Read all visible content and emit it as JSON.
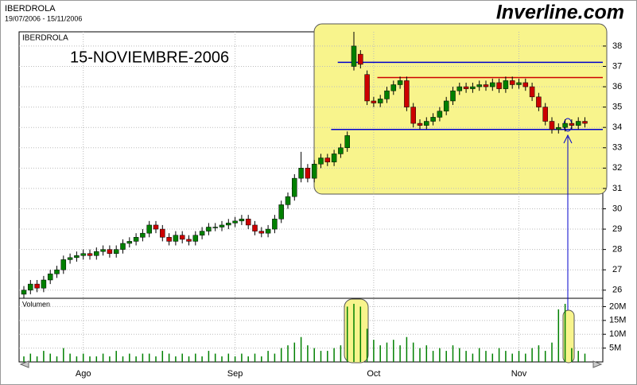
{
  "chart_data": {
    "type": "candlestick",
    "title": "IBERDROLA",
    "subtitle": "19/07/2006 - 15/11/2006",
    "brand": "Inverline.com",
    "label": "IBERDROLA",
    "annotation": "15-NOVIEMBRE-2006",
    "categories": [
      null,
      null,
      null,
      null,
      null,
      null,
      null,
      null,
      null,
      "Ago",
      null,
      null,
      null,
      null,
      null,
      null,
      null,
      null,
      null,
      null,
      null,
      null,
      null,
      null,
      null,
      null,
      null,
      null,
      null,
      null,
      null,
      null,
      "Sep",
      null,
      null,
      null,
      null,
      null,
      null,
      null,
      null,
      null,
      null,
      null,
      null,
      null,
      null,
      null,
      null,
      null,
      null,
      null,
      null,
      "Oct",
      null,
      null,
      null,
      null,
      null,
      null,
      null,
      null,
      null,
      null,
      null,
      null,
      null,
      null,
      null,
      null,
      null,
      null,
      null,
      null,
      null,
      "Nov",
      null,
      null,
      null,
      null,
      null,
      null,
      null,
      null,
      null,
      null
    ],
    "open": [
      25.8,
      26.0,
      26.3,
      26.1,
      26.5,
      26.8,
      27.0,
      27.5,
      27.6,
      27.7,
      27.8,
      27.7,
      27.9,
      28.0,
      27.8,
      28.0,
      28.3,
      28.4,
      28.6,
      28.8,
      29.2,
      29.0,
      28.6,
      28.4,
      28.7,
      28.5,
      28.4,
      28.7,
      28.9,
      29.1,
      29.1,
      29.2,
      29.3,
      29.4,
      29.5,
      29.2,
      28.9,
      28.8,
      29.0,
      29.5,
      30.2,
      30.6,
      31.5,
      32.0,
      31.5,
      32.2,
      32.5,
      32.3,
      32.7,
      33.0,
      37.0,
      37.6,
      36.6,
      35.3,
      35.2,
      35.4,
      35.8,
      36.1,
      36.3,
      35.0,
      34.2,
      34.1,
      34.3,
      34.5,
      34.8,
      35.3,
      35.8,
      36.0,
      35.9,
      36.0,
      36.1,
      36.0,
      36.2,
      35.9,
      36.3,
      36.1,
      36.2,
      36.0,
      35.5,
      35.0,
      34.3,
      33.9,
      34.0,
      34.2,
      34.1,
      34.3
    ],
    "high": [
      26.2,
      26.5,
      26.5,
      26.7,
      27.0,
      27.2,
      27.7,
      27.8,
      27.9,
      28.0,
      28.0,
      28.1,
      28.2,
      28.2,
      28.2,
      28.5,
      28.6,
      28.8,
      29.0,
      29.4,
      29.4,
      29.2,
      28.8,
      28.9,
      28.9,
      28.7,
      28.9,
      29.1,
      29.3,
      29.3,
      29.4,
      29.5,
      29.6,
      29.7,
      29.7,
      29.4,
      29.1,
      29.2,
      29.7,
      30.4,
      30.8,
      31.7,
      32.8,
      32.2,
      32.4,
      32.7,
      32.7,
      32.9,
      33.2,
      33.8,
      38.7,
      37.8,
      36.8,
      35.5,
      35.6,
      36.0,
      36.3,
      36.5,
      36.5,
      35.2,
      34.4,
      34.5,
      34.7,
      35.0,
      35.5,
      36.0,
      36.2,
      36.2,
      36.2,
      36.3,
      36.3,
      36.4,
      36.4,
      36.5,
      36.5,
      36.4,
      36.4,
      36.2,
      35.7,
      35.2,
      34.5,
      34.2,
      34.4,
      34.4,
      34.5,
      34.5
    ],
    "low": [
      25.6,
      25.8,
      25.9,
      25.9,
      26.3,
      26.6,
      26.8,
      27.3,
      27.4,
      27.5,
      27.5,
      27.5,
      27.7,
      27.6,
      27.6,
      27.8,
      28.1,
      28.2,
      28.4,
      28.6,
      28.8,
      28.4,
      28.2,
      28.2,
      28.3,
      28.2,
      28.2,
      28.5,
      28.7,
      28.9,
      28.9,
      29.0,
      29.1,
      29.2,
      29.0,
      28.7,
      28.6,
      28.6,
      28.8,
      29.3,
      30.0,
      30.4,
      31.3,
      31.3,
      31.3,
      32.0,
      32.1,
      32.1,
      32.5,
      32.8,
      36.8,
      36.9,
      35.1,
      35.0,
      35.0,
      35.2,
      35.6,
      35.9,
      34.8,
      34.0,
      33.9,
      33.9,
      34.1,
      34.3,
      34.6,
      35.1,
      35.6,
      35.7,
      35.7,
      35.8,
      35.8,
      35.8,
      35.7,
      35.7,
      35.9,
      35.9,
      35.8,
      35.3,
      34.8,
      34.1,
      33.7,
      33.7,
      33.8,
      33.9,
      33.9,
      34.0
    ],
    "close": [
      26.0,
      26.3,
      26.1,
      26.5,
      26.8,
      27.0,
      27.5,
      27.6,
      27.7,
      27.8,
      27.7,
      27.9,
      28.0,
      27.8,
      28.0,
      28.3,
      28.4,
      28.6,
      28.8,
      29.2,
      29.0,
      28.6,
      28.4,
      28.7,
      28.5,
      28.4,
      28.7,
      28.9,
      29.1,
      29.1,
      29.2,
      29.3,
      29.4,
      29.5,
      29.2,
      28.9,
      28.8,
      29.0,
      29.5,
      30.2,
      30.6,
      31.5,
      32.0,
      31.5,
      32.2,
      32.5,
      32.3,
      32.7,
      33.0,
      33.6,
      38.0,
      37.1,
      35.3,
      35.2,
      35.4,
      35.8,
      36.1,
      36.3,
      35.0,
      34.2,
      34.1,
      34.3,
      34.5,
      34.8,
      35.3,
      35.8,
      36.0,
      35.9,
      36.0,
      36.1,
      36.0,
      36.2,
      35.9,
      36.3,
      36.1,
      36.2,
      36.0,
      35.5,
      35.0,
      34.3,
      33.9,
      34.0,
      34.2,
      34.1,
      34.3,
      34.2
    ],
    "up_color": "#008000",
    "down_color": "#cc0000",
    "ylim": [
      25.6,
      38.7
    ],
    "yticks": [
      26,
      27,
      28,
      29,
      30,
      31,
      32,
      33,
      34,
      35,
      36,
      37,
      38
    ],
    "grid": true,
    "levels": [
      {
        "value": 37.2,
        "color": "#0000cc",
        "start": 49
      },
      {
        "value": 36.45,
        "color": "#cc0000",
        "start": 55
      },
      {
        "value": 33.9,
        "color": "#0000cc",
        "start": 48
      }
    ],
    "volume": {
      "label": "Volumen",
      "color": "#008000",
      "values": [
        2,
        3,
        2,
        4,
        3,
        2,
        5,
        3,
        2,
        3,
        2,
        2,
        3,
        2,
        4,
        2,
        3,
        2,
        3,
        3,
        2,
        4,
        3,
        2,
        3,
        2,
        3,
        2,
        4,
        3,
        2,
        3,
        2,
        3,
        2,
        3,
        2,
        4,
        3,
        5,
        6,
        7,
        9,
        6,
        5,
        4,
        4,
        5,
        6,
        20,
        21,
        20,
        12,
        8,
        6,
        7,
        8,
        6,
        9,
        7,
        5,
        6,
        4,
        5,
        4,
        6,
        5,
        4,
        3,
        5,
        4,
        3,
        5,
        4,
        3,
        4,
        3,
        5,
        6,
        4,
        7,
        19,
        21,
        5,
        4,
        3
      ],
      "ylim": [
        0,
        23
      ],
      "yticks": [
        {
          "value": 5,
          "label": "5M"
        },
        {
          "value": 10,
          "label": "10M"
        },
        {
          "value": 15,
          "label": "15M"
        },
        {
          "value": 20,
          "label": "20M"
        }
      ]
    }
  }
}
